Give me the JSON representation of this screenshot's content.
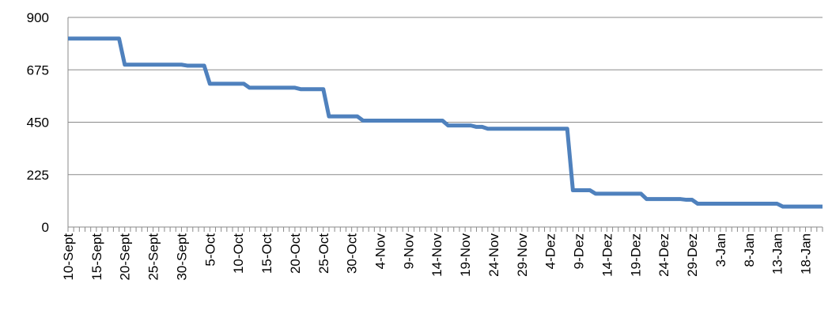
{
  "chart_data": {
    "type": "line",
    "title": "",
    "xlabel": "",
    "ylabel": "",
    "ylim": [
      0,
      900
    ],
    "yticks": [
      0,
      225,
      450,
      675,
      900
    ],
    "xlim": [
      "2013-09-10",
      "2014-01-21"
    ],
    "grid": true,
    "legend": "none",
    "colors": {
      "series": "#4f81bd",
      "grid": "#8a8a8a",
      "axis": "#8a8a8a"
    },
    "xtick_labels": [
      {
        "date": "2013-09-10",
        "label": "10-Sept"
      },
      {
        "date": "2013-09-15",
        "label": "15-Sept"
      },
      {
        "date": "2013-09-20",
        "label": "20-Sept"
      },
      {
        "date": "2013-09-25",
        "label": "25-Sept"
      },
      {
        "date": "2013-09-30",
        "label": "30-Sept"
      },
      {
        "date": "2013-10-05",
        "label": "5-Oct"
      },
      {
        "date": "2013-10-10",
        "label": "10-Oct"
      },
      {
        "date": "2013-10-15",
        "label": "15-Oct"
      },
      {
        "date": "2013-10-20",
        "label": "20-Oct"
      },
      {
        "date": "2013-10-25",
        "label": "25-Oct"
      },
      {
        "date": "2013-10-30",
        "label": "30-Oct"
      },
      {
        "date": "2013-11-04",
        "label": "4-Nov"
      },
      {
        "date": "2013-11-09",
        "label": "9-Nov"
      },
      {
        "date": "2013-11-14",
        "label": "14-Nov"
      },
      {
        "date": "2013-11-19",
        "label": "19-Nov"
      },
      {
        "date": "2013-11-24",
        "label": "24-Nov"
      },
      {
        "date": "2013-11-29",
        "label": "29-Nov"
      },
      {
        "date": "2013-12-04",
        "label": "4-Dez"
      },
      {
        "date": "2013-12-09",
        "label": "9-Dez"
      },
      {
        "date": "2013-12-14",
        "label": "14-Dez"
      },
      {
        "date": "2013-12-19",
        "label": "19-Dez"
      },
      {
        "date": "2013-12-24",
        "label": "24-Dez"
      },
      {
        "date": "2013-12-29",
        "label": "29-Dez"
      },
      {
        "date": "2014-01-03",
        "label": "3-Jan"
      },
      {
        "date": "2014-01-08",
        "label": "8-Jan"
      },
      {
        "date": "2014-01-13",
        "label": "13-Jan"
      },
      {
        "date": "2014-01-18",
        "label": "18-Jan"
      }
    ],
    "series": [
      {
        "points": [
          {
            "x": "2013-09-10",
            "y": 809
          },
          {
            "x": "2013-09-19",
            "y": 809
          },
          {
            "x": "2013-09-20",
            "y": 697
          },
          {
            "x": "2013-09-30",
            "y": 697
          },
          {
            "x": "2013-10-01",
            "y": 693
          },
          {
            "x": "2013-10-04",
            "y": 693
          },
          {
            "x": "2013-10-05",
            "y": 615
          },
          {
            "x": "2013-10-11",
            "y": 615
          },
          {
            "x": "2013-10-12",
            "y": 598
          },
          {
            "x": "2013-10-20",
            "y": 598
          },
          {
            "x": "2013-10-21",
            "y": 592
          },
          {
            "x": "2013-10-25",
            "y": 592
          },
          {
            "x": "2013-10-26",
            "y": 475
          },
          {
            "x": "2013-10-31",
            "y": 475
          },
          {
            "x": "2013-11-01",
            "y": 457
          },
          {
            "x": "2013-11-15",
            "y": 457
          },
          {
            "x": "2013-11-16",
            "y": 436
          },
          {
            "x": "2013-11-20",
            "y": 436
          },
          {
            "x": "2013-11-21",
            "y": 430
          },
          {
            "x": "2013-11-22",
            "y": 430
          },
          {
            "x": "2013-11-23",
            "y": 422
          },
          {
            "x": "2013-12-07",
            "y": 422
          },
          {
            "x": "2013-12-08",
            "y": 158
          },
          {
            "x": "2013-12-11",
            "y": 158
          },
          {
            "x": "2013-12-12",
            "y": 143
          },
          {
            "x": "2013-12-20",
            "y": 143
          },
          {
            "x": "2013-12-21",
            "y": 120
          },
          {
            "x": "2013-12-27",
            "y": 120
          },
          {
            "x": "2013-12-28",
            "y": 117
          },
          {
            "x": "2013-12-29",
            "y": 117
          },
          {
            "x": "2013-12-30",
            "y": 100
          },
          {
            "x": "2014-01-12",
            "y": 100
          },
          {
            "x": "2014-01-13",
            "y": 100
          },
          {
            "x": "2014-01-14",
            "y": 88
          },
          {
            "x": "2014-01-21",
            "y": 88
          }
        ]
      }
    ]
  }
}
